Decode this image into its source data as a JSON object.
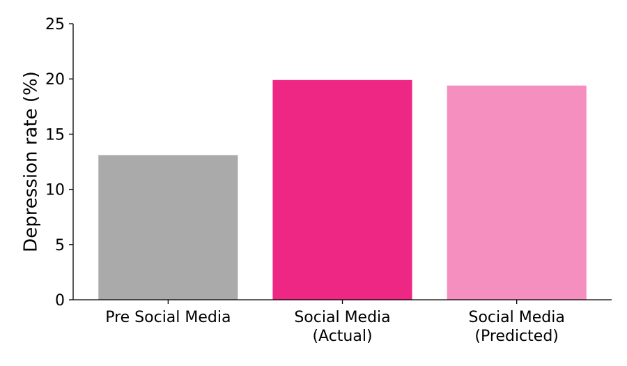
{
  "chart_data": {
    "type": "bar",
    "ylabel": "Depression rate (%)",
    "categories": [
      [
        "Pre Social Media"
      ],
      [
        "Social Media",
        "(Actual)"
      ],
      [
        "Social Media",
        "(Predicted)"
      ]
    ],
    "values": [
      13.1,
      19.9,
      19.4
    ],
    "colors": [
      "#aaaaaa",
      "#ee2785",
      "#f48fbf"
    ],
    "ylim": [
      0,
      25
    ],
    "yticks": [
      0,
      5,
      10,
      15,
      20,
      25
    ],
    "grid": false
  }
}
